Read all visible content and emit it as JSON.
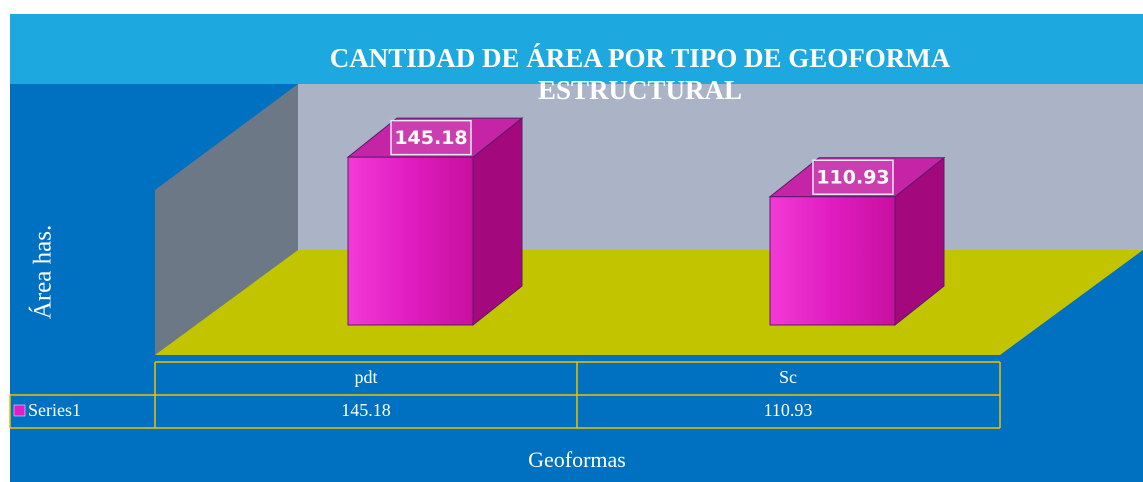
{
  "chart_data": {
    "type": "bar3d",
    "title": "CANTIDAD DE ÁREA POR TIPO DE GEOFORMA ESTRUCTURAL",
    "y_label": "Área has.",
    "x_label": "Geoformas",
    "categories": [
      "pdt",
      "Sc"
    ],
    "series": [
      {
        "name": "Series1",
        "color": "#e61cc4",
        "values": [
          145.18,
          110.93
        ]
      }
    ],
    "ylim": [
      0,
      160
    ]
  }
}
